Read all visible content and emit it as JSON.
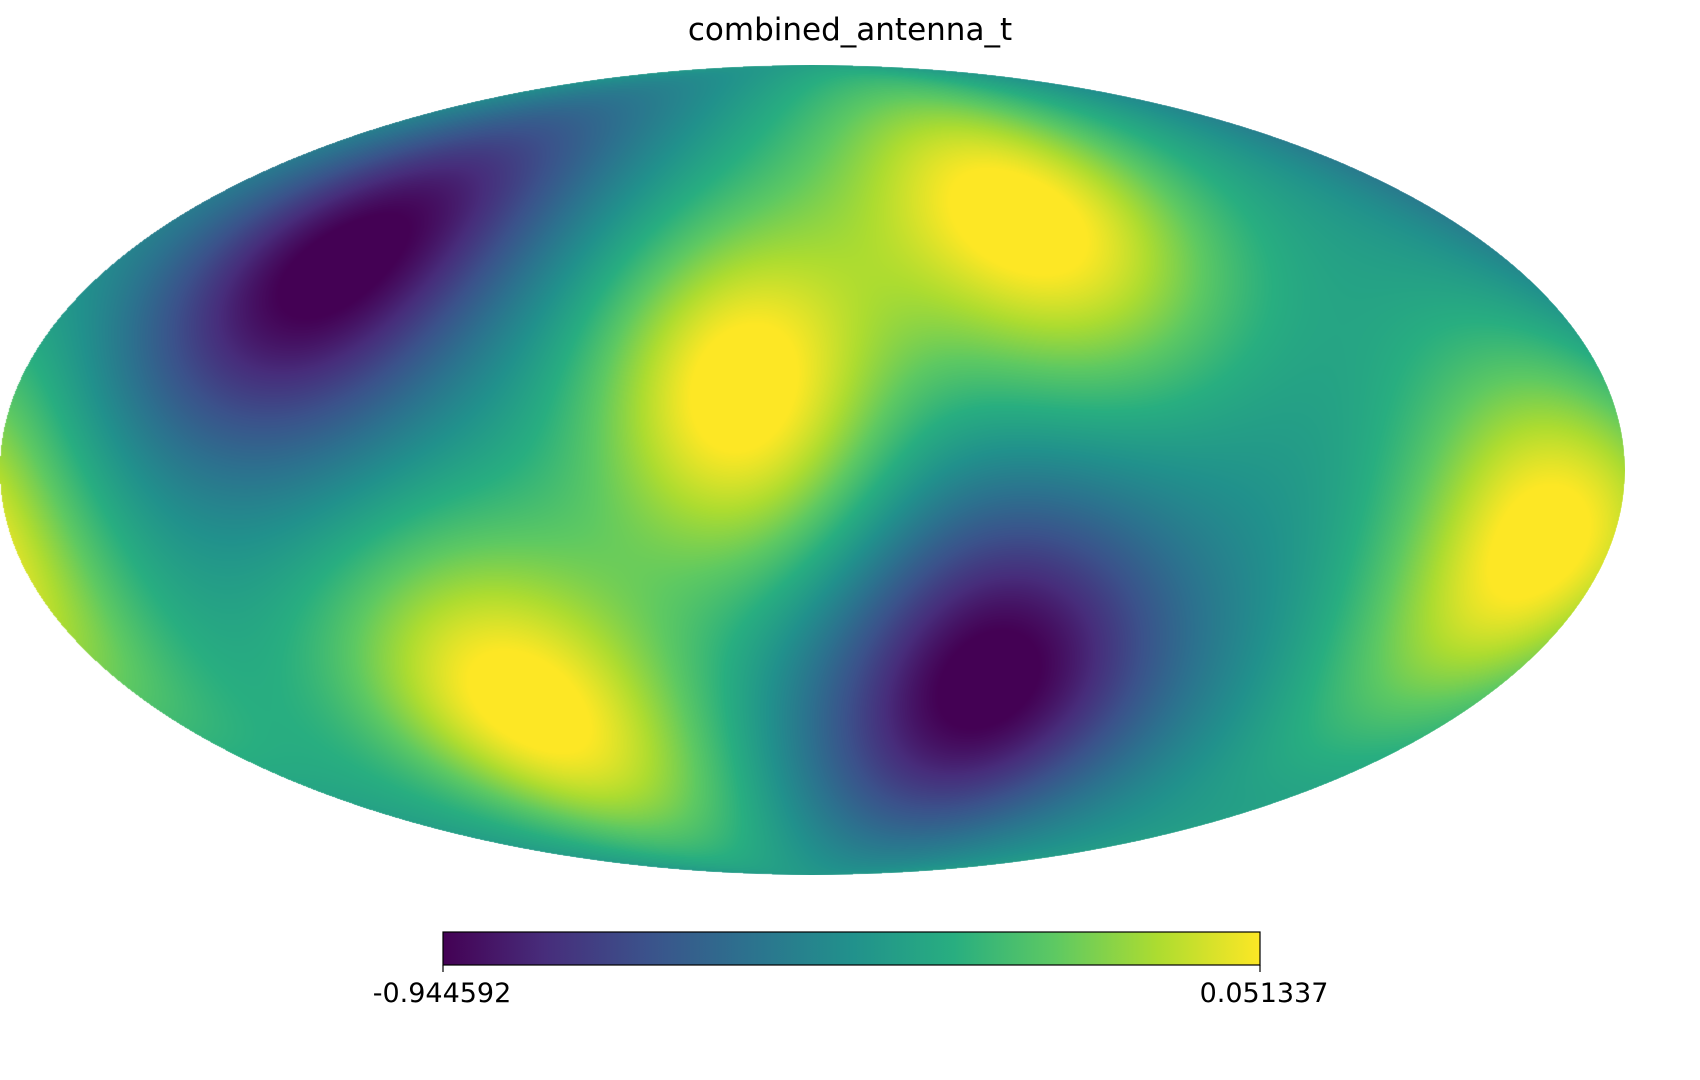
{
  "chart_data": {
    "type": "heatmap",
    "projection": "mollweide",
    "title": "combined_antenna_t",
    "colormap": "viridis",
    "colorbar": {
      "min": -0.944592,
      "max": 0.051337,
      "min_label": "-0.944592",
      "max_label": "0.051337",
      "placement": "bottom"
    },
    "features": [
      {
        "kind": "minimum",
        "lon": -121,
        "lat": 38,
        "value": -0.94
      },
      {
        "kind": "maximum",
        "lon": -16,
        "lat": 14,
        "value": 0.05
      },
      {
        "kind": "maximum",
        "lon": 60,
        "lat": 47,
        "value": 0.02
      },
      {
        "kind": "minimum",
        "lon": 45,
        "lat": -39,
        "value": -0.94
      },
      {
        "kind": "maximum",
        "lon": 164,
        "lat": -13,
        "value": 0.05
      },
      {
        "kind": "maximum",
        "lon": -77,
        "lat": -44,
        "value": 0.02
      }
    ]
  }
}
